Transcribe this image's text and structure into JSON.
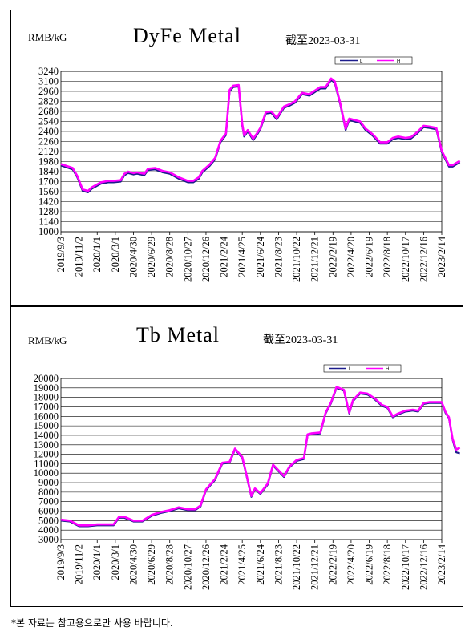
{
  "footnote": "*본 자료는 참고용으로만 사용 바랍니다.",
  "colors": {
    "low": "#1c1c8c",
    "high": "#ff00ff"
  },
  "x_labels": [
    "2019/9/3",
    "2019/11/2",
    "2020/1/1",
    "2020/3/1",
    "2020/4/30",
    "2020/6/29",
    "2020/8/28",
    "2020/10/27",
    "2020/12/26",
    "2021/2/24",
    "2021/4/25",
    "2021/6/24",
    "2021/8/23",
    "2021/10/22",
    "2021/12/21",
    "2022/2/19",
    "2022/4/20",
    "2022/6/19",
    "2022/8/18",
    "2022/10/17",
    "2022/12/16",
    "2023/2/14"
  ],
  "legend": {
    "low": "L",
    "high": "H"
  },
  "charts": [
    {
      "unit": "RMB/kG",
      "title": "DyFe Metal",
      "as_of": "截至2023-03-31",
      "chart_data": {
        "type": "line",
        "ylim": [
          1000,
          3240
        ],
        "yticks": [
          1000,
          1140,
          1280,
          1420,
          1560,
          1700,
          1840,
          1980,
          2120,
          2260,
          2400,
          2540,
          2680,
          2820,
          2960,
          3100,
          3240
        ],
        "xlabel": "",
        "ylabel": "",
        "legend_position": "top-right",
        "x": [
          0,
          0.3,
          0.65,
          0.9,
          1.2,
          1.5,
          1.7,
          2.2,
          2.6,
          2.9,
          3.3,
          3.5,
          3.7,
          4.0,
          4.2,
          4.6,
          4.8,
          5.2,
          5.6,
          6.0,
          6.5,
          7.0,
          7.3,
          7.6,
          7.8,
          8.2,
          8.5,
          8.8,
          9.1,
          9.3,
          9.5,
          9.8,
          10.0,
          10.1,
          10.3,
          10.6,
          10.8,
          11.0,
          11.3,
          11.6,
          11.9,
          12.3,
          12.6,
          12.9,
          13.3,
          13.7,
          14.0,
          14.3,
          14.6,
          14.9,
          15.1,
          15.4,
          15.7,
          15.9,
          16.2,
          16.5,
          16.8,
          17.2,
          17.6,
          18.0,
          18.3,
          18.6,
          19.0,
          19.3,
          19.6,
          20.0,
          20.3,
          20.7,
          21.0,
          21.4,
          21.6,
          21.8,
          22.0
        ],
        "series": [
          {
            "key": "low",
            "name": "L",
            "values": [
              1925,
              1900,
              1870,
              1760,
              1570,
              1550,
              1600,
              1670,
              1690,
              1690,
              1700,
              1790,
              1820,
              1800,
              1810,
              1790,
              1860,
              1870,
              1830,
              1810,
              1740,
              1690,
              1690,
              1740,
              1830,
              1920,
              2010,
              2250,
              2350,
              2960,
              3020,
              3030,
              2480,
              2330,
              2400,
              2280,
              2350,
              2430,
              2650,
              2660,
              2570,
              2730,
              2760,
              2800,
              2920,
              2900,
              2950,
              3000,
              3000,
              3120,
              3080,
              2780,
              2420,
              2560,
              2540,
              2520,
              2420,
              2340,
              2230,
              2230,
              2290,
              2310,
              2290,
              2300,
              2360,
              2460,
              2450,
              2430,
              2110,
              1910,
              1910,
              1940,
              1970
            ]
          },
          {
            "key": "high",
            "name": "H",
            "values": [
              1945,
              1920,
              1890,
              1780,
              1590,
              1570,
              1620,
              1690,
              1710,
              1710,
              1720,
              1810,
              1840,
              1820,
              1830,
              1810,
              1880,
              1890,
              1850,
              1830,
              1760,
              1710,
              1710,
              1760,
              1850,
              1940,
              2030,
              2270,
              2370,
              2980,
              3040,
              3050,
              2500,
              2350,
              2420,
              2300,
              2370,
              2450,
              2670,
              2680,
              2590,
              2750,
              2780,
              2820,
              2940,
              2920,
              2970,
              3020,
              3020,
              3140,
              3100,
              2800,
              2440,
              2580,
              2560,
              2540,
              2440,
              2360,
              2250,
              2250,
              2310,
              2330,
              2310,
              2320,
              2380,
              2480,
              2470,
              2450,
              2130,
              1930,
              1930,
              1960,
              1990
            ]
          }
        ]
      }
    },
    {
      "unit": "RMB/kG",
      "title": "Tb Metal",
      "as_of": "截至2023-03-31",
      "chart_data": {
        "type": "line",
        "ylim": [
          3000,
          20000
        ],
        "yticks": [
          3000,
          4000,
          5000,
          6000,
          7000,
          8000,
          9000,
          10000,
          11000,
          12000,
          13000,
          14000,
          15000,
          16000,
          17000,
          18000,
          19000,
          20000
        ],
        "xlabel": "",
        "ylabel": "",
        "legend_position": "top-right",
        "x": [
          0,
          0.5,
          1.0,
          1.5,
          2.0,
          2.5,
          2.9,
          3.2,
          3.5,
          4.0,
          4.5,
          5.0,
          5.5,
          6.0,
          6.5,
          7.0,
          7.4,
          7.7,
          8.0,
          8.5,
          8.9,
          9.3,
          9.6,
          10.0,
          10.2,
          10.5,
          10.7,
          11.0,
          11.4,
          11.7,
          12.0,
          12.3,
          12.6,
          13.0,
          13.4,
          13.6,
          13.8,
          14.3,
          14.6,
          14.9,
          15.2,
          15.6,
          15.9,
          16.1,
          16.5,
          16.9,
          17.3,
          17.7,
          18.0,
          18.3,
          18.6,
          19.0,
          19.4,
          19.7,
          20.0,
          20.3,
          20.6,
          21.0,
          21.2,
          21.4,
          21.6,
          21.8,
          22.0
        ],
        "series": [
          {
            "key": "low",
            "name": "L",
            "values": [
              5000,
              4900,
              4400,
              4400,
              4500,
              4500,
              4500,
              5300,
              5300,
              4900,
              4900,
              5500,
              5800,
              6000,
              6300,
              6100,
              6100,
              6500,
              8200,
              9300,
              11000,
              11100,
              12500,
              11600,
              10000,
              7500,
              8300,
              7800,
              8800,
              10800,
              10200,
              9600,
              10600,
              11300,
              11500,
              14000,
              14100,
              14200,
              16300,
              17400,
              19000,
              18700,
              16300,
              17600,
              18400,
              18300,
              17800,
              17100,
              16900,
              15900,
              16200,
              16500,
              16600,
              16500,
              17300,
              17400,
              17400,
              17400,
              16400,
              15800,
              13500,
              12200,
              12100
            ]
          },
          {
            "key": "high",
            "name": "H",
            "values": [
              5100,
              5000,
              4500,
              4500,
              4600,
              4600,
              4600,
              5400,
              5400,
              5000,
              5000,
              5600,
              5900,
              6100,
              6400,
              6200,
              6200,
              6600,
              8300,
              9400,
              11100,
              11200,
              12600,
              11700,
              10100,
              7600,
              8400,
              7900,
              8900,
              10900,
              10300,
              9700,
              10700,
              11400,
              11600,
              14100,
              14200,
              14300,
              16400,
              17500,
              19100,
              18800,
              16400,
              17700,
              18500,
              18400,
              17900,
              17200,
              17000,
              16000,
              16300,
              16600,
              16700,
              16600,
              17400,
              17500,
              17500,
              17500,
              16500,
              15900,
              13600,
              12500,
              12700
            ]
          }
        ]
      }
    }
  ]
}
